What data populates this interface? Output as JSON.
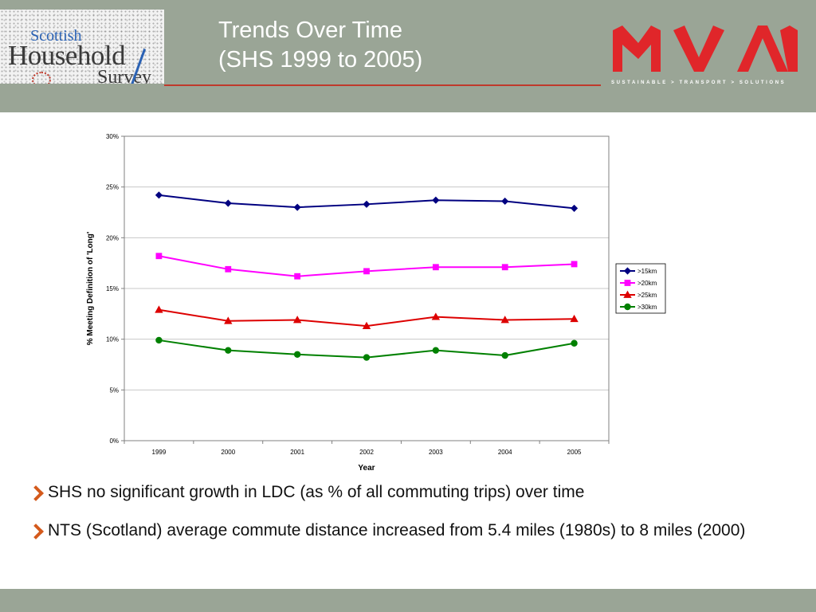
{
  "header": {
    "logo_left": {
      "line1": "Scottish",
      "line2": "Household",
      "line3": "Survey"
    },
    "title_line1": "Trends Over Time",
    "title_line2": "(SHS 1999 to 2005)",
    "logo_right": {
      "tagline": "SUSTAINABLE > TRANSPORT > SOLUTIONS"
    },
    "colors": {
      "band": "#9aa596",
      "brand_red": "#e0262a",
      "rule": "#c0392b"
    }
  },
  "chart_data": {
    "type": "line",
    "x": [
      "1999",
      "2000",
      "2001",
      "2002",
      "2003",
      "2004",
      "2005"
    ],
    "xlabel": "Year",
    "ylabel": "% Meeting Definition of 'Long'",
    "ylim": [
      0,
      30
    ],
    "yticks": [
      "0%",
      "5%",
      "10%",
      "15%",
      "20%",
      "25%",
      "30%"
    ],
    "grid": "horizontal",
    "legend_position": "right",
    "series": [
      {
        "name": ">15km",
        "color": "#000080",
        "marker": "diamond",
        "values": [
          24.2,
          23.4,
          23.0,
          23.3,
          23.7,
          23.6,
          22.9
        ]
      },
      {
        "name": ">20km",
        "color": "#ff00ff",
        "marker": "square",
        "values": [
          18.2,
          16.9,
          16.2,
          16.7,
          17.1,
          17.1,
          17.4
        ]
      },
      {
        "name": ">25km",
        "color": "#dd0000",
        "marker": "triangle",
        "values": [
          12.9,
          11.8,
          11.9,
          11.3,
          12.2,
          11.9,
          12.0
        ]
      },
      {
        "name": ">30km",
        "color": "#008000",
        "marker": "circle",
        "values": [
          9.9,
          8.9,
          8.5,
          8.2,
          8.9,
          8.4,
          9.6
        ]
      }
    ]
  },
  "bullets": [
    "SHS no significant growth in LDC (as % of all commuting trips) over time",
    "NTS (Scotland) average commute distance increased from 5.4 miles (1980s) to 8 miles (2000)"
  ]
}
